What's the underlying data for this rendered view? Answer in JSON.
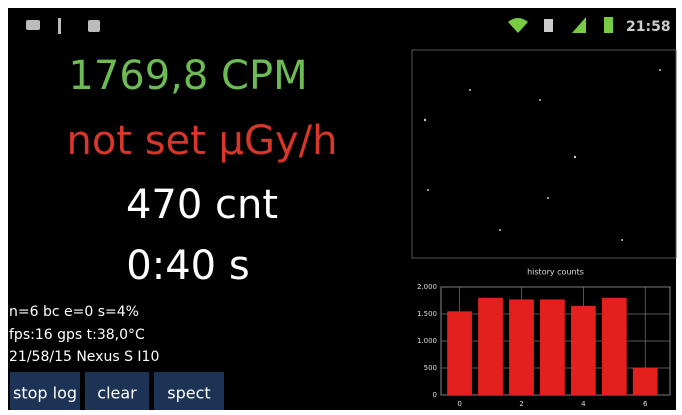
{
  "status_bar": {
    "time": "21:58"
  },
  "readings": {
    "cpm": "1769,8 CPM",
    "dose": "not set µGy/h",
    "count": "470 cnt",
    "time": "0:40 s"
  },
  "info": [
    "n=6 bc e=0 s=4%",
    "fps:16 gps t:38,0°C",
    "21/58/15 Nexus S I10"
  ],
  "buttons": [
    "stop log",
    "clear",
    "spect"
  ],
  "chart_data": {
    "type": "bar",
    "title": "history counts",
    "x": [
      0,
      1,
      2,
      3,
      4,
      5,
      6
    ],
    "values": [
      1550,
      1800,
      1770,
      1770,
      1650,
      1800,
      500
    ],
    "color": "#e3201e",
    "xlim": [
      -0.6,
      6.8
    ],
    "xticks": [
      0,
      2,
      4,
      6
    ],
    "ylim": [
      0,
      2000
    ],
    "yticks": [
      {
        "value": 0,
        "label": "0"
      },
      {
        "value": 500,
        "label": "500"
      },
      {
        "value": 1000,
        "label": "1.000"
      },
      {
        "value": 1500,
        "label": "1.500"
      },
      {
        "value": 2000,
        "label": "2.000"
      }
    ],
    "grid": true
  }
}
